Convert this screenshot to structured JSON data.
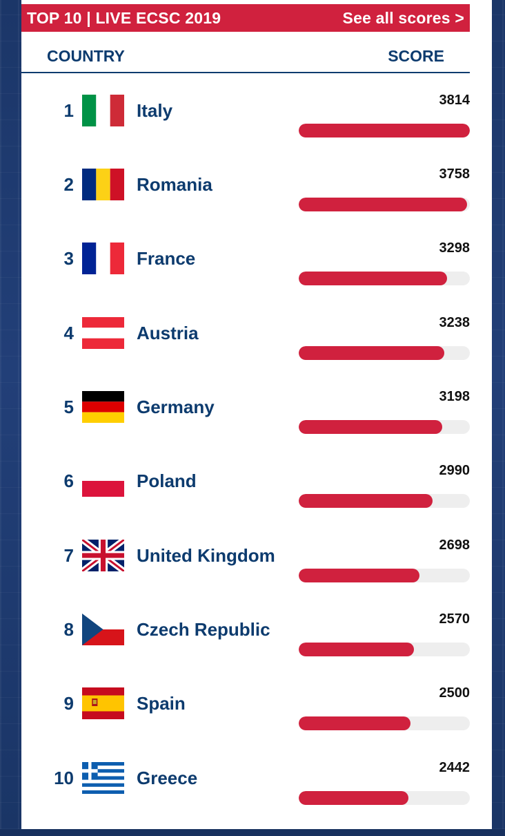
{
  "header": {
    "title": "TOP 10 | LIVE ECSC 2019",
    "see_all": "See all scores >"
  },
  "columns": {
    "country": "COUNTRY",
    "score": "SCORE"
  },
  "max_score": 3814,
  "rows": [
    {
      "rank": "1",
      "country": "Italy",
      "score": "3814",
      "flag": "italy-flag-icon"
    },
    {
      "rank": "2",
      "country": "Romania",
      "score": "3758",
      "flag": "romania-flag-icon"
    },
    {
      "rank": "3",
      "country": "France",
      "score": "3298",
      "flag": "france-flag-icon"
    },
    {
      "rank": "4",
      "country": "Austria",
      "score": "3238",
      "flag": "austria-flag-icon"
    },
    {
      "rank": "5",
      "country": "Germany",
      "score": "3198",
      "flag": "germany-flag-icon"
    },
    {
      "rank": "6",
      "country": "Poland",
      "score": "2990",
      "flag": "poland-flag-icon"
    },
    {
      "rank": "7",
      "country": "United Kingdom",
      "score": "2698",
      "flag": "uk-flag-icon"
    },
    {
      "rank": "8",
      "country": "Czech Republic",
      "score": "2570",
      "flag": "czech-flag-icon"
    },
    {
      "rank": "9",
      "country": "Spain",
      "score": "2500",
      "flag": "spain-flag-icon"
    },
    {
      "rank": "10",
      "country": "Greece",
      "score": "2442",
      "flag": "greece-flag-icon"
    }
  ],
  "colors": {
    "accent": "#d0213e",
    "navy": "#0d3b6e",
    "track": "#eeeeee"
  }
}
